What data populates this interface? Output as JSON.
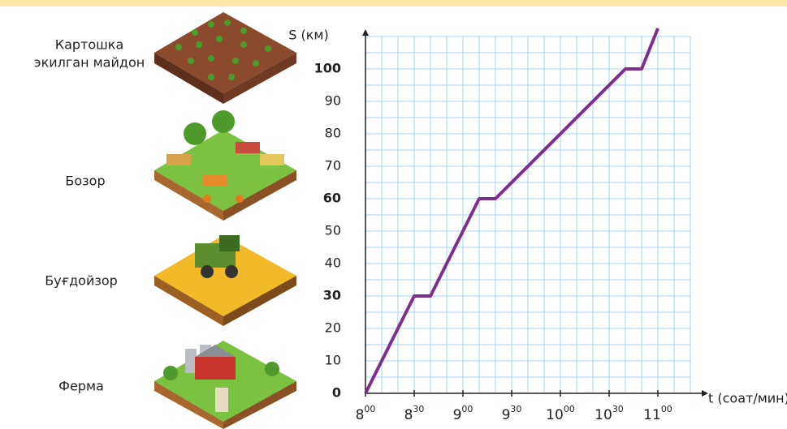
{
  "chart_data": {
    "type": "line",
    "y_axis_label": "S (км)",
    "x_axis_label": "t (соат/мин)",
    "x": [
      480,
      510,
      520,
      550,
      560,
      640,
      650,
      660
    ],
    "series": [
      {
        "color": "#7d2f8f",
        "values": [
          0,
          30,
          30,
          60,
          60,
          100,
          100,
          112.5
        ]
      }
    ],
    "xlim": [
      480,
      680
    ],
    "ylim": [
      0,
      110
    ],
    "xticks": [
      {
        "value": 480,
        "hour": "8",
        "minute": "00"
      },
      {
        "value": 510,
        "hour": "8",
        "minute": "30"
      },
      {
        "value": 540,
        "hour": "9",
        "minute": "00"
      },
      {
        "value": 570,
        "hour": "9",
        "minute": "30"
      },
      {
        "value": 600,
        "hour": "10",
        "minute": "00"
      },
      {
        "value": 630,
        "hour": "10",
        "minute": "30"
      },
      {
        "value": 660,
        "hour": "11",
        "minute": "00"
      }
    ],
    "yticks": [
      0,
      10,
      20,
      30,
      40,
      50,
      60,
      70,
      80,
      90,
      100
    ],
    "yticks_bold": [
      0,
      30,
      60,
      100
    ],
    "grid": true,
    "grid_color": "#a6d6ec"
  },
  "places": [
    {
      "lines": [
        "Картошка",
        "экилган майдон"
      ]
    },
    {
      "lines": [
        "Бозор"
      ]
    },
    {
      "lines": [
        "Буғдойзор"
      ]
    },
    {
      "lines": [
        "Ферма"
      ]
    }
  ]
}
